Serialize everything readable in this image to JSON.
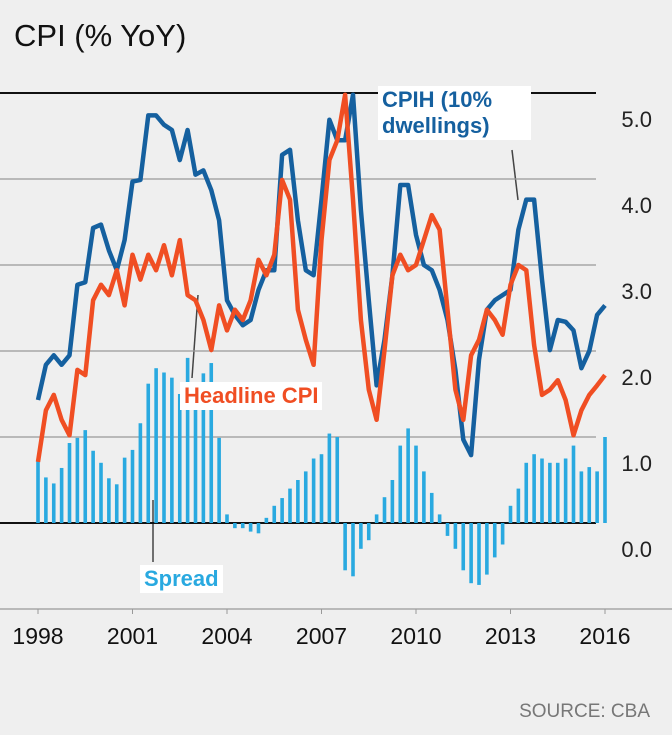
{
  "chart_data": {
    "type": "line",
    "title": "CPI (% YoY)",
    "source": "SOURCE: CBA",
    "x": [
      1998,
      1998.25,
      1998.5,
      1998.75,
      1999,
      1999.25,
      1999.5,
      1999.75,
      2000,
      2000.25,
      2000.5,
      2000.75,
      2001,
      2001.25,
      2001.5,
      2001.75,
      2002,
      2002.25,
      2002.5,
      2002.75,
      2003,
      2003.25,
      2003.5,
      2003.75,
      2004,
      2004.25,
      2004.5,
      2004.75,
      2005,
      2005.25,
      2005.5,
      2005.75,
      2006,
      2006.25,
      2006.5,
      2006.75,
      2007,
      2007.25,
      2007.5,
      2007.75,
      2008,
      2008.25,
      2008.5,
      2008.75,
      2009,
      2009.25,
      2009.5,
      2009.75,
      2010,
      2010.25,
      2010.5,
      2010.75,
      2011,
      2011.25,
      2011.5,
      2011.75,
      2012,
      2012.25,
      2012.5,
      2012.75,
      2013,
      2013.25,
      2013.5,
      2013.75,
      2014,
      2014.25,
      2014.5,
      2014.75,
      2015,
      2015.25,
      2015.5,
      2015.75,
      2016
    ],
    "series": [
      {
        "name": "Spread",
        "type": "bar",
        "color": "#29a9e0",
        "values": [
          0.72,
          0.53,
          0.46,
          0.64,
          0.93,
          0.99,
          1.08,
          0.84,
          0.7,
          0.52,
          0.45,
          0.76,
          0.85,
          1.16,
          1.62,
          1.8,
          1.75,
          1.69,
          1.5,
          1.92,
          1.46,
          1.74,
          1.86,
          0.99,
          0.1,
          -0.06,
          -0.06,
          -0.1,
          -0.12,
          0.06,
          0.2,
          0.29,
          0.4,
          0.5,
          0.6,
          0.75,
          0.8,
          1.04,
          1.0,
          -0.55,
          -0.62,
          -0.3,
          -0.2,
          0.1,
          0.3,
          0.5,
          0.9,
          1.1,
          0.9,
          0.6,
          0.35,
          0.1,
          -0.15,
          -0.3,
          -0.55,
          -0.7,
          -0.72,
          -0.6,
          -0.4,
          -0.25,
          0.2,
          0.4,
          0.7,
          0.8,
          0.75,
          0.7,
          0.7,
          0.75,
          0.9,
          0.6,
          0.65,
          0.6,
          1.0
        ]
      },
      {
        "name": "CPIH (10% dwellings)",
        "type": "line",
        "color": "#15609f",
        "values": [
          1.43,
          1.84,
          1.95,
          1.84,
          1.95,
          2.77,
          2.8,
          3.43,
          3.47,
          3.17,
          2.94,
          3.29,
          3.97,
          3.99,
          4.74,
          4.74,
          4.63,
          4.57,
          4.22,
          4.57,
          4.05,
          4.1,
          3.87,
          3.52,
          2.59,
          2.42,
          2.3,
          2.36,
          2.71,
          2.94,
          2.94,
          4.28,
          4.34,
          3.52,
          2.94,
          2.88,
          3.76,
          4.69,
          4.45,
          4.45,
          4.98,
          3.64,
          2.59,
          1.6,
          2.13,
          2.88,
          3.93,
          3.93,
          3.35,
          3.0,
          2.94,
          2.71,
          2.36,
          1.78,
          0.97,
          0.79,
          1.9,
          2.48,
          2.59,
          2.65,
          2.71,
          3.41,
          3.76,
          3.76,
          2.83,
          2.01,
          2.36,
          2.34,
          2.24,
          1.8,
          2.0,
          2.42,
          2.53
        ]
      },
      {
        "name": "Headline CPI",
        "type": "line",
        "color": "#f04e23",
        "values": [
          0.71,
          1.31,
          1.49,
          1.2,
          1.02,
          1.78,
          1.72,
          2.59,
          2.77,
          2.65,
          2.94,
          2.53,
          3.12,
          2.83,
          3.12,
          2.94,
          3.23,
          2.88,
          3.29,
          2.65,
          2.59,
          2.36,
          2.01,
          2.53,
          2.24,
          2.48,
          2.36,
          2.59,
          3.06,
          2.88,
          3.12,
          3.99,
          3.76,
          2.48,
          2.13,
          1.84,
          3.29,
          4.22,
          4.45,
          4.98,
          3.76,
          2.36,
          1.55,
          1.2,
          2.01,
          2.88,
          3.12,
          2.94,
          3.0,
          3.29,
          3.58,
          3.41,
          2.48,
          1.55,
          1.2,
          1.95,
          2.13,
          2.48,
          2.36,
          2.19,
          2.77,
          3.0,
          2.94,
          2.07,
          1.49,
          1.55,
          1.66,
          1.43,
          1.02,
          1.31,
          1.49,
          1.6,
          1.72
        ]
      }
    ],
    "xlim": [
      1998,
      2016
    ],
    "xticks": [
      1998,
      2001,
      2004,
      2007,
      2010,
      2013,
      2016
    ],
    "ylim": [
      -1,
      5
    ],
    "yticks": [
      {
        "value": 0,
        "label": "0.0"
      },
      {
        "value": 1,
        "label": "1.0"
      },
      {
        "value": 2,
        "label": "2.0"
      },
      {
        "value": 3,
        "label": "3.0"
      },
      {
        "value": 4,
        "label": "4.0"
      },
      {
        "value": 5,
        "label": "5.0"
      }
    ],
    "grid": true
  }
}
